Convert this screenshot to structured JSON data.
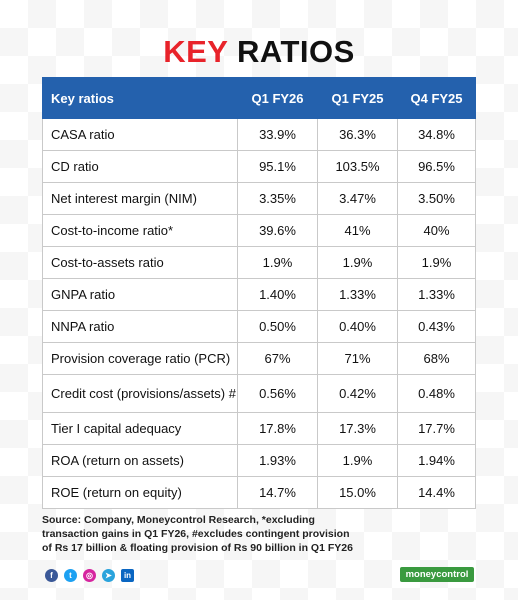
{
  "title": {
    "part1": "KEY",
    "part2": "RATIOS"
  },
  "table": {
    "headers": [
      "Key ratios",
      "Q1 FY26",
      "Q1 FY25",
      "Q4 FY25"
    ],
    "rows": [
      [
        "CASA ratio",
        "33.9%",
        "36.3%",
        "34.8%"
      ],
      [
        "CD ratio",
        "95.1%",
        "103.5%",
        "96.5%"
      ],
      [
        "Net interest margin (NIM)",
        "3.35%",
        "3.47%",
        "3.50%"
      ],
      [
        "Cost-to-income ratio*",
        "39.6%",
        "41%",
        "40%"
      ],
      [
        "Cost-to-assets ratio",
        "1.9%",
        "1.9%",
        "1.9%"
      ],
      [
        "GNPA ratio",
        "1.40%",
        "1.33%",
        "1.33%"
      ],
      [
        "NNPA ratio",
        "0.50%",
        "0.40%",
        "0.43%"
      ],
      [
        "Provision coverage ratio (PCR)",
        "67%",
        "71%",
        "68%"
      ],
      [
        "Credit cost (provisions/assets) #",
        "0.56%",
        "0.42%",
        "0.48%"
      ],
      [
        "Tier I capital adequacy",
        "17.8%",
        "17.3%",
        "17.7%"
      ],
      [
        "ROA (return on assets)",
        "1.93%",
        "1.9%",
        "1.94%"
      ],
      [
        "ROE (return on equity)",
        "14.7%",
        "15.0%",
        "14.4%"
      ]
    ]
  },
  "source": {
    "line1": "Source: Company, Moneycontrol Research, *excluding",
    "line2": "transaction gains in Q1 FY26, #excludes contingent provision",
    "line3": "of Rs 17 billion & floating provision of Rs 90 billion in Q1 FY26"
  },
  "social_icons": [
    {
      "name": "facebook",
      "glyph": "f",
      "color": "#3b5998"
    },
    {
      "name": "twitter",
      "glyph": "t",
      "color": "#1da1f2"
    },
    {
      "name": "instagram",
      "glyph": "◎",
      "color": "#d6249f"
    },
    {
      "name": "telegram",
      "glyph": "➤",
      "color": "#2aa3dc"
    },
    {
      "name": "linkedin",
      "glyph": "in",
      "color": "#0a66c2"
    }
  ],
  "brand": "moneycontrol",
  "colors": {
    "accent_red": "#e8232a",
    "header_blue": "#2461ad",
    "brand_green": "#3a9a3f"
  }
}
